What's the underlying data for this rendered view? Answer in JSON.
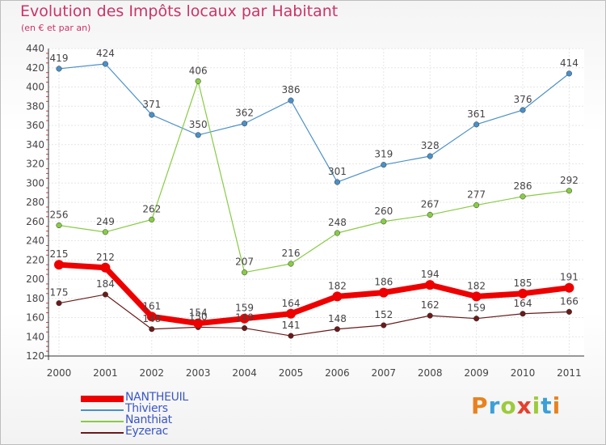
{
  "header": {
    "title": "Evolution des Impôts locaux par Habitant",
    "subtitle": "(en € et par an)"
  },
  "logo": {
    "text": "Proxiti",
    "colors": [
      "#e8821e",
      "#3aa0d8",
      "#9ccb3b",
      "#e6402c",
      "#9ccb3b",
      "#3aa0d8",
      "#e8821e"
    ]
  },
  "chart_data": {
    "type": "line",
    "x": [
      "2000",
      "2001",
      "2002",
      "2003",
      "2004",
      "2005",
      "2006",
      "2007",
      "2008",
      "2009",
      "2010",
      "2011"
    ],
    "ylim": [
      120,
      440
    ],
    "yticks": [
      120,
      140,
      160,
      180,
      200,
      220,
      240,
      260,
      280,
      300,
      320,
      340,
      360,
      380,
      400,
      420,
      440
    ],
    "grid": true,
    "legend_position": "bottom-left",
    "series": [
      {
        "name": "NANTHEUIL",
        "color": "#ee0000",
        "values": [
          215,
          212,
          161,
          154,
          159,
          164,
          182,
          186,
          194,
          182,
          185,
          191
        ]
      },
      {
        "name": "Thiviers",
        "color": "#4a90c8",
        "values": [
          419,
          424,
          371,
          350,
          362,
          386,
          301,
          319,
          328,
          361,
          376,
          414
        ]
      },
      {
        "name": "Nanthiat",
        "color": "#88cc44",
        "values": [
          256,
          249,
          262,
          406,
          207,
          216,
          248,
          260,
          267,
          277,
          286,
          292
        ]
      },
      {
        "name": "Eyzerac",
        "color": "#6a1a1a",
        "values": [
          175,
          184,
          148,
          150,
          149,
          141,
          148,
          152,
          162,
          159,
          164,
          166
        ]
      }
    ]
  }
}
